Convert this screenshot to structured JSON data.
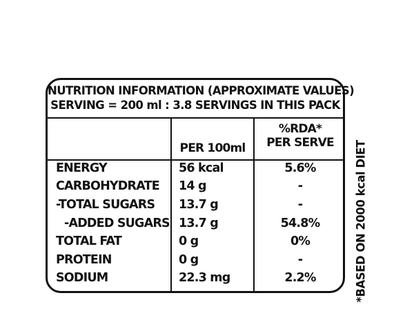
{
  "label": {
    "title_line1": "NUTRITION INFORMATION (APPROXIMATE VALUES)",
    "title_line2": "SERVING = 200 ml : 3.8 SERVINGS IN THIS PACK",
    "header": {
      "per100": "PER 100ml",
      "rda_line1": "%RDA*",
      "rda_line2": "PER SERVE"
    },
    "rows": [
      {
        "name": "ENERGY",
        "per100": "56 kcal",
        "rda": "5.6%"
      },
      {
        "name": "CARBOHYDRATE",
        "per100": "14 g",
        "rda": "-"
      },
      {
        "name": "-TOTAL SUGARS",
        "per100": "13.7 g",
        "rda": "-"
      },
      {
        "name": "-ADDED SUGARS",
        "per100": "13.7 g",
        "rda": "54.8%"
      },
      {
        "name": "TOTAL FAT",
        "per100": "0 g",
        "rda": "0%"
      },
      {
        "name": "PROTEIN",
        "per100": "0 g",
        "rda": "-"
      },
      {
        "name": "SODIUM",
        "per100": "22.3 mg",
        "rda": "2.2%"
      }
    ],
    "footnote": "*BASED ON 2000 kcal DIET"
  }
}
